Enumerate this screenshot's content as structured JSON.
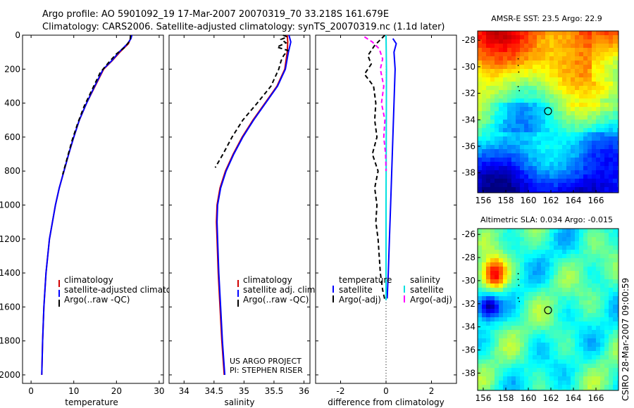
{
  "header": {
    "line1": "Argo profile: AO 5901092_19 17-Mar-2007 20070319_70 33.218S 161.679E",
    "line2": "Climatology: CARS2006. Satellite-adjusted climatology: synTS_20070319.nc (1.1d later)"
  },
  "side_label": "CSIRO 28-Mar-2007 09:00:59",
  "credit": {
    "line1": "US ARGO PROJECT",
    "line2": "PI: STEPHEN RISER"
  },
  "colors": {
    "climatology": "#d00000",
    "satellite": "#0000ff",
    "argo": "#000000",
    "sat_salinity": "#00e0e0",
    "argo_adj_salinity": "#ff00ff"
  },
  "chart_data": [
    {
      "type": "line",
      "panel": "temperature",
      "xlabel": "temperature",
      "ylabel": "",
      "xlim": [
        -2,
        31
      ],
      "ylim": [
        2050,
        0
      ],
      "xticks": [
        "0",
        "10",
        "20",
        "30"
      ],
      "yticks": [
        "0",
        "200",
        "400",
        "600",
        "800",
        "1000",
        "1200",
        "1400",
        "1600",
        "1800",
        "2000"
      ],
      "legend": [
        "climatology",
        "satellite-adjusted climatology",
        "Argo(..raw -QC)"
      ],
      "series": [
        {
          "name": "climatology",
          "points": [
            [
              23.4,
              0
            ],
            [
              23.3,
              20
            ],
            [
              22.8,
              50
            ],
            [
              20.8,
              100
            ],
            [
              19.0,
              150
            ],
            [
              17.0,
              200
            ],
            [
              15.0,
              300
            ],
            [
              13.0,
              400
            ],
            [
              11.3,
              500
            ],
            [
              10.0,
              600
            ],
            [
              8.8,
              700
            ],
            [
              7.7,
              800
            ],
            [
              6.6,
              900
            ],
            [
              5.7,
              1000
            ],
            [
              4.3,
              1200
            ],
            [
              3.5,
              1400
            ],
            [
              3.0,
              1600
            ],
            [
              2.7,
              1800
            ],
            [
              2.5,
              2000
            ]
          ]
        },
        {
          "name": "satellite-adjusted climatology",
          "points": [
            [
              23.6,
              0
            ],
            [
              23.4,
              20
            ],
            [
              22.6,
              50
            ],
            [
              20.6,
              100
            ],
            [
              18.9,
              150
            ],
            [
              16.9,
              200
            ],
            [
              14.9,
              300
            ],
            [
              13.0,
              400
            ],
            [
              11.3,
              500
            ],
            [
              10.0,
              600
            ],
            [
              8.8,
              700
            ],
            [
              7.7,
              800
            ],
            [
              6.6,
              900
            ],
            [
              5.7,
              1000
            ],
            [
              4.3,
              1200
            ],
            [
              3.5,
              1400
            ],
            [
              3.0,
              1600
            ],
            [
              2.7,
              1800
            ],
            [
              2.5,
              2000
            ]
          ]
        },
        {
          "name": "Argo(..raw -QC)",
          "points": [
            [
              23.3,
              0
            ],
            [
              23.2,
              30
            ],
            [
              22.0,
              70
            ],
            [
              20.0,
              110
            ],
            [
              18.2,
              160
            ],
            [
              16.2,
              220
            ],
            [
              14.3,
              320
            ],
            [
              12.4,
              420
            ],
            [
              10.9,
              520
            ],
            [
              9.6,
              620
            ],
            [
              8.5,
              720
            ],
            [
              7.4,
              820
            ]
          ]
        }
      ]
    },
    {
      "type": "line",
      "panel": "salinity",
      "xlabel": "salinity",
      "xlim": [
        33.75,
        36.1
      ],
      "ylim": [
        2050,
        0
      ],
      "xticks": [
        "34",
        "34.5",
        "35",
        "35.5",
        "36"
      ],
      "legend": [
        "climatology",
        "satellite adj. clim.",
        "Argo(..raw -QC)"
      ],
      "series": [
        {
          "name": "climatology",
          "points": [
            [
              35.72,
              0
            ],
            [
              35.73,
              40
            ],
            [
              35.72,
              100
            ],
            [
              35.68,
              200
            ],
            [
              35.55,
              300
            ],
            [
              35.35,
              400
            ],
            [
              35.15,
              500
            ],
            [
              34.97,
              600
            ],
            [
              34.82,
              700
            ],
            [
              34.69,
              800
            ],
            [
              34.6,
              900
            ],
            [
              34.55,
              1000
            ],
            [
              34.54,
              1100
            ],
            [
              34.55,
              1200
            ],
            [
              34.57,
              1400
            ],
            [
              34.6,
              1600
            ],
            [
              34.63,
              1800
            ],
            [
              34.67,
              2000
            ]
          ]
        },
        {
          "name": "satellite adj. clim.",
          "points": [
            [
              35.75,
              0
            ],
            [
              35.78,
              40
            ],
            [
              35.74,
              100
            ],
            [
              35.69,
              200
            ],
            [
              35.56,
              300
            ],
            [
              35.36,
              400
            ],
            [
              35.16,
              500
            ],
            [
              34.98,
              600
            ],
            [
              34.83,
              700
            ],
            [
              34.7,
              800
            ],
            [
              34.61,
              900
            ],
            [
              34.56,
              1000
            ],
            [
              34.55,
              1100
            ],
            [
              34.56,
              1200
            ],
            [
              34.58,
              1400
            ],
            [
              34.61,
              1600
            ],
            [
              34.64,
              1800
            ],
            [
              34.68,
              2000
            ]
          ]
        },
        {
          "name": "Argo(..raw -QC)",
          "points": [
            [
              35.65,
              0
            ],
            [
              35.72,
              10
            ],
            [
              35.62,
              25
            ],
            [
              35.7,
              45
            ],
            [
              35.55,
              70
            ],
            [
              35.73,
              90
            ],
            [
              35.66,
              120
            ],
            [
              35.62,
              150
            ],
            [
              35.58,
              200
            ],
            [
              35.45,
              300
            ],
            [
              35.22,
              400
            ],
            [
              34.98,
              500
            ],
            [
              34.8,
              600
            ],
            [
              34.65,
              700
            ],
            [
              34.52,
              780
            ]
          ]
        }
      ]
    },
    {
      "type": "line",
      "panel": "difference",
      "xlabel": "difference from climatology",
      "xlim": [
        -3.1,
        3.1
      ],
      "ylim": [
        2050,
        0
      ],
      "xticks": [
        "-2",
        "0",
        "2"
      ],
      "legend": [
        "temperature",
        "satellite",
        "Argo(-adj)",
        "salinity",
        "satellite",
        "Argo(-adj)"
      ],
      "series": [
        {
          "name": "temperature satellite",
          "points": [
            [
              0.3,
              20
            ],
            [
              0.45,
              50
            ],
            [
              0.35,
              100
            ],
            [
              0.4,
              200
            ],
            [
              0.35,
              400
            ],
            [
              0.3,
              600
            ],
            [
              0.25,
              800
            ],
            [
              0.2,
              1000
            ],
            [
              0.15,
              1200
            ],
            [
              0.1,
              1400
            ],
            [
              0.05,
              1550
            ]
          ]
        },
        {
          "name": "temperature Argo(-adj)",
          "points": [
            [
              -0.05,
              0
            ],
            [
              -0.5,
              60
            ],
            [
              -0.8,
              120
            ],
            [
              -0.65,
              170
            ],
            [
              -0.95,
              230
            ],
            [
              -0.55,
              300
            ],
            [
              -0.45,
              400
            ],
            [
              -0.5,
              500
            ],
            [
              -0.4,
              600
            ],
            [
              -0.6,
              700
            ],
            [
              -0.35,
              800
            ],
            [
              -0.5,
              900
            ],
            [
              -0.4,
              1000
            ],
            [
              -0.45,
              1100
            ],
            [
              -0.35,
              1200
            ],
            [
              -0.3,
              1300
            ],
            [
              -0.25,
              1400
            ],
            [
              -0.15,
              1500
            ],
            [
              -0.05,
              1560
            ]
          ]
        },
        {
          "name": "salinity satellite",
          "points": [
            [
              0.0,
              0
            ],
            [
              0.02,
              200
            ],
            [
              0.01,
              600
            ],
            [
              0.0,
              1000
            ],
            [
              0.0,
              1560
            ]
          ]
        },
        {
          "name": "salinity Argo(-adj)",
          "points": [
            [
              -0.95,
              10
            ],
            [
              -0.6,
              40
            ],
            [
              -0.3,
              80
            ],
            [
              -0.15,
              140
            ],
            [
              -0.25,
              200
            ],
            [
              -0.1,
              300
            ],
            [
              -0.2,
              400
            ],
            [
              -0.05,
              500
            ],
            [
              -0.1,
              600
            ],
            [
              -0.02,
              700
            ],
            [
              0.0,
              800
            ]
          ]
        }
      ]
    },
    {
      "type": "heatmap",
      "panel": "sst_map",
      "title": "AMSR-E SST: 23.5 Argo: 22.9",
      "xlim": [
        155.5,
        168
      ],
      "ylim": [
        -39.5,
        -27.3
      ],
      "xticks": [
        "156",
        "158",
        "160",
        "162",
        "164",
        "166"
      ],
      "yticks": [
        "-28",
        "-30",
        "-32",
        "-34",
        "-36",
        "-38"
      ],
      "marker": [
        161.7,
        -33.2
      ]
    },
    {
      "type": "heatmap",
      "panel": "sla_map",
      "title": "Altimetric SLA: 0.034 Argo: -0.015",
      "xlim": [
        155.5,
        168
      ],
      "ylim": [
        -39.5,
        -25.5
      ],
      "xticks": [
        "156",
        "158",
        "160",
        "162",
        "164",
        "166"
      ],
      "yticks": [
        "-26",
        "-28",
        "-30",
        "-32",
        "-34",
        "-36",
        "-38"
      ],
      "marker": [
        161.7,
        -33.2
      ]
    }
  ]
}
